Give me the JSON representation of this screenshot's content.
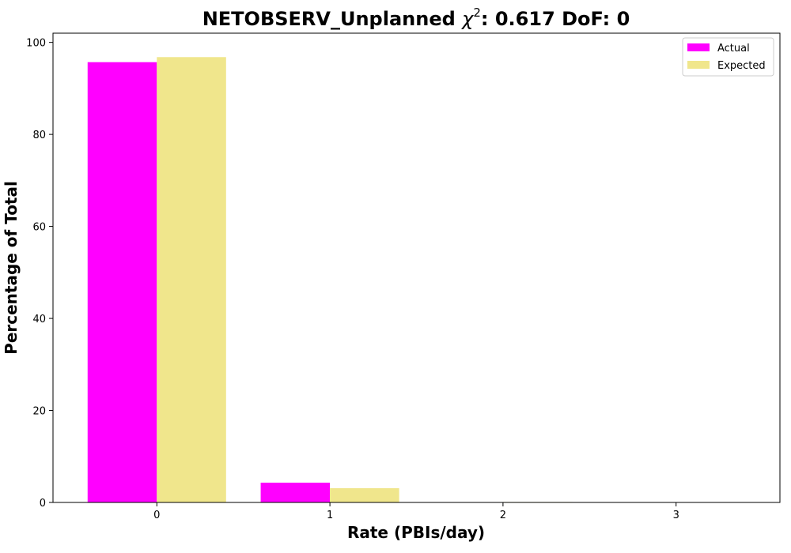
{
  "chart_data": {
    "type": "bar",
    "title_prefix": "NETOBSERV_Unplanned ",
    "title_chi": "χ",
    "title_sup": "2",
    "title_suffix": ": 0.617 DoF: 0",
    "xlabel": "Rate (PBIs/day)",
    "ylabel": "Percentage of Total",
    "categories": [
      "0",
      "1",
      "2",
      "3"
    ],
    "x": [
      0,
      1,
      2,
      3
    ],
    "xlim": [
      -0.6,
      3.6
    ],
    "ylim": [
      0,
      102
    ],
    "yticks": [
      0,
      20,
      40,
      60,
      80,
      100
    ],
    "grid": false,
    "legend_position": "top-right",
    "series": [
      {
        "name": "Actual",
        "color": "#ff00ff",
        "values": [
          95.7,
          4.3,
          0,
          0
        ]
      },
      {
        "name": "Expected",
        "color": "#f0e68c",
        "values": [
          96.8,
          3.1,
          0.1,
          0
        ]
      }
    ]
  }
}
